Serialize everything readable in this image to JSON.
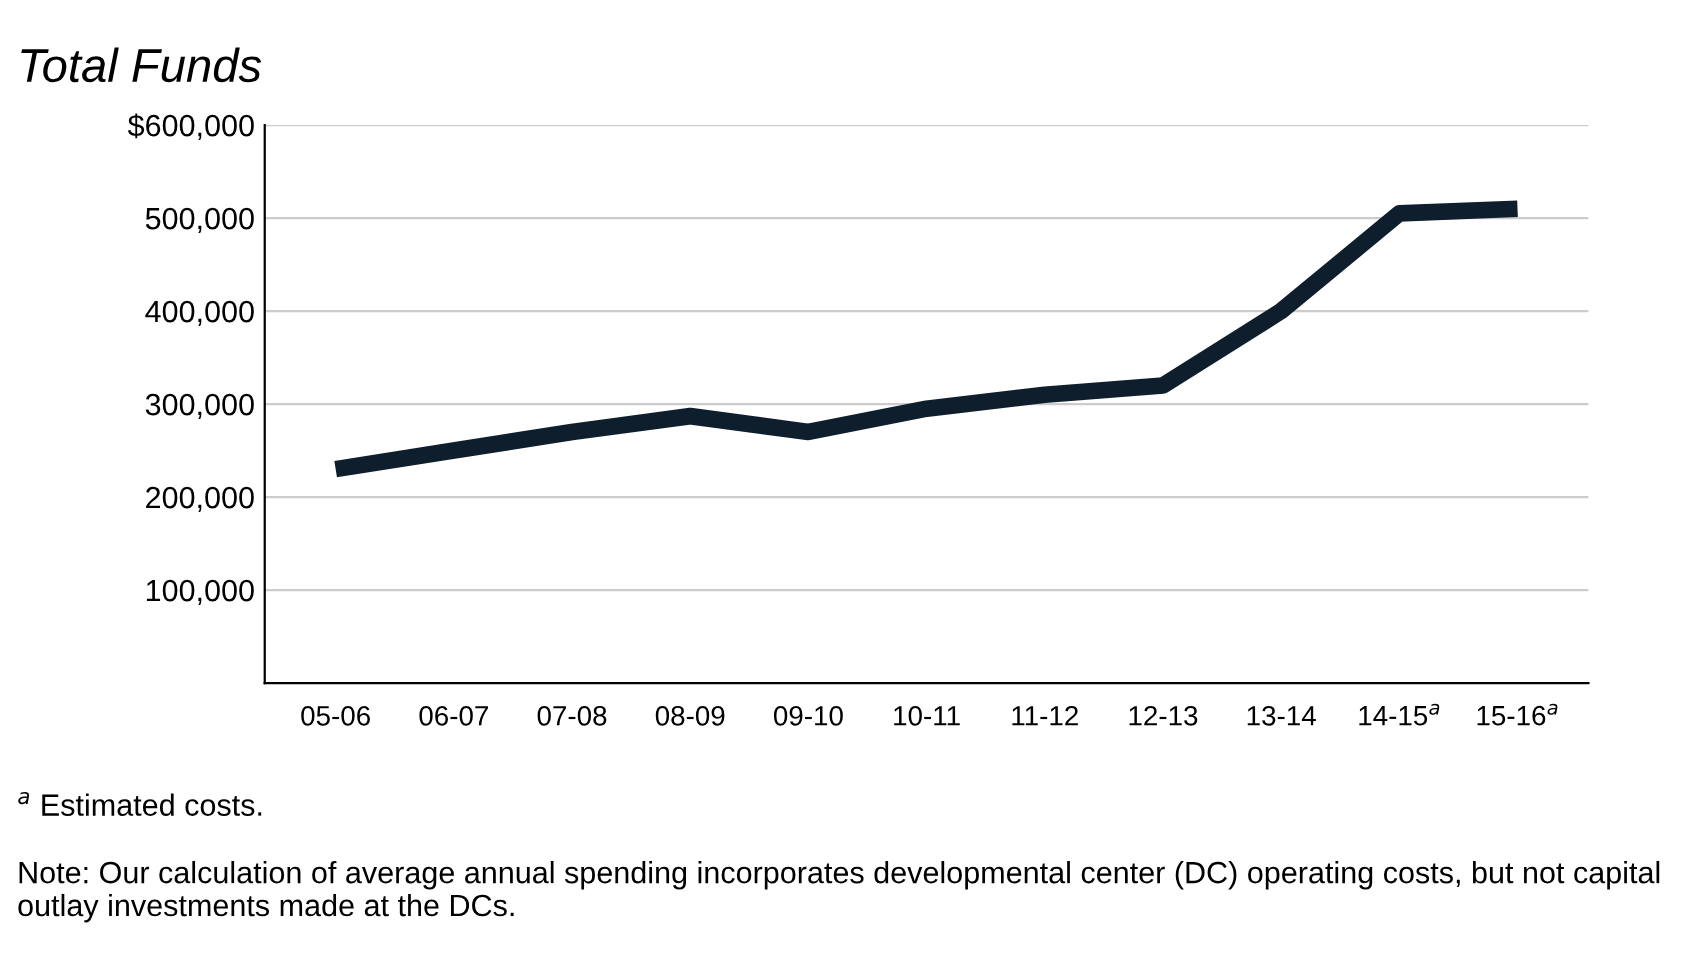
{
  "chart_data": {
    "type": "line",
    "title": "Total Funds",
    "categories": [
      "05-06",
      "06-07",
      "07-08",
      "08-09",
      "09-10",
      "10-11",
      "11-12",
      "12-13",
      "13-14",
      "14-15$^{a}$",
      "15-16$^{a}$"
    ],
    "series": [
      {
        "color": "#0f1e2d",
        "values": [
          230000,
          250000,
          270000,
          287000,
          270000,
          295000,
          310000,
          320000,
          400000,
          505000,
          510000
        ]
      }
    ],
    "ylim": [
      0,
      600000
    ],
    "yticks": [
      {
        "value": 100000,
        "label": "100,000"
      },
      {
        "value": 200000,
        "label": "200,000"
      },
      {
        "value": 300000,
        "label": "300,000"
      },
      {
        "value": 400000,
        "label": "400,000"
      },
      {
        "value": 500000,
        "label": "500,000"
      },
      {
        "value": 600000,
        "label": "$600,000"
      }
    ],
    "grid": "y",
    "marker": "none",
    "line_style": "solid",
    "annotations": [
      "$^{a}$ Estimated costs.",
      "Note: Our calculation of average annual spending incorporates developmental center (DC) operating costs, but not capital outlay investments made at the DCs."
    ]
  }
}
